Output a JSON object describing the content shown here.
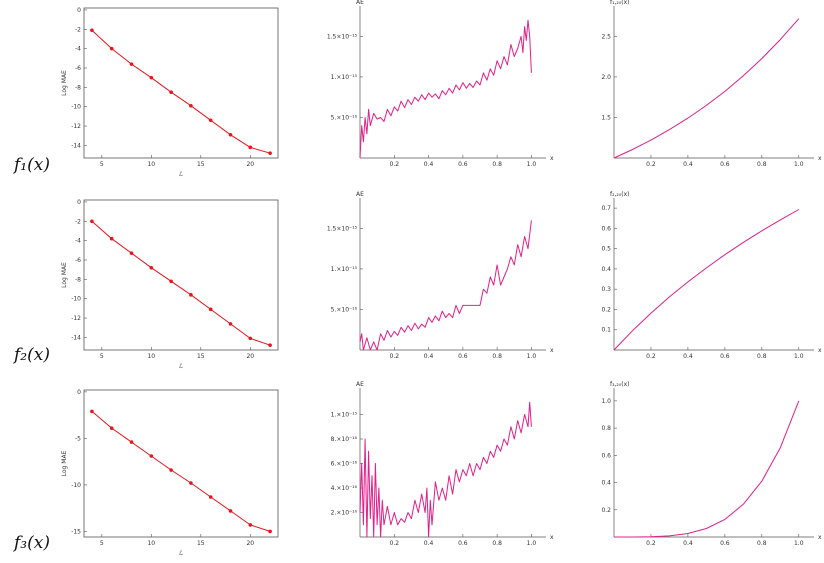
{
  "chart_data": [
    {
      "type": "line",
      "row": 0,
      "col": 0,
      "xlabel": "ℒ",
      "ylabel": "Log MAE",
      "xlim": [
        3.2,
        22.8
      ],
      "ylim": [
        -15.3,
        0.2
      ],
      "xticks": [
        "5",
        "10",
        "15",
        "20"
      ],
      "xtick_values": [
        5,
        10,
        15,
        20
      ],
      "yticks": [
        "0",
        "-2",
        "-4",
        "-6",
        "-8",
        "-10",
        "-12",
        "-14"
      ],
      "ytick_values": [
        0,
        -2,
        -4,
        -6,
        -8,
        -10,
        -12,
        -14
      ],
      "frame": true,
      "markers": true,
      "color": "#e8141c",
      "series": [
        {
          "x": [
            4,
            6,
            8,
            10,
            12,
            14,
            16,
            18,
            20,
            22
          ],
          "y": [
            -2.1,
            -4.0,
            -5.6,
            -7.0,
            -8.5,
            -9.9,
            -11.4,
            -12.9,
            -14.2,
            -14.8
          ]
        }
      ]
    },
    {
      "type": "line",
      "row": 0,
      "col": 1,
      "xlabel": "x",
      "ylabel": "AE",
      "xlim": [
        0,
        1.05
      ],
      "ylim": [
        0,
        1.85e-15
      ],
      "xticks": [
        "0.2",
        "0.4",
        "0.6",
        "0.8",
        "1.0"
      ],
      "xtick_values": [
        0.2,
        0.4,
        0.6,
        0.8,
        1.0
      ],
      "yticks": [
        "5.×10⁻¹⁶",
        "1.×10⁻¹⁵",
        "1.5×10⁻¹⁵"
      ],
      "ytick_values": [
        5e-16,
        1e-15,
        1.5e-15
      ],
      "frame": false,
      "markers": false,
      "color": "#e0208a",
      "series": [
        {
          "x": [
            0,
            0.01,
            0.02,
            0.03,
            0.04,
            0.05,
            0.06,
            0.08,
            0.1,
            0.12,
            0.14,
            0.16,
            0.18,
            0.2,
            0.22,
            0.24,
            0.26,
            0.28,
            0.3,
            0.32,
            0.34,
            0.36,
            0.38,
            0.4,
            0.42,
            0.44,
            0.46,
            0.48,
            0.5,
            0.52,
            0.54,
            0.56,
            0.58,
            0.6,
            0.62,
            0.64,
            0.66,
            0.68,
            0.7,
            0.72,
            0.74,
            0.76,
            0.78,
            0.8,
            0.82,
            0.84,
            0.86,
            0.88,
            0.9,
            0.92,
            0.94,
            0.95,
            0.96,
            0.97,
            0.98,
            0.99,
            1.0
          ],
          "y": [
            0,
            4e-16,
            2e-16,
            5e-16,
            3e-16,
            6e-16,
            4e-16,
            5.5e-16,
            4.8e-16,
            5e-16,
            4.5e-16,
            6e-16,
            5.2e-16,
            6.3e-16,
            5.8e-16,
            7e-16,
            6.2e-16,
            7.2e-16,
            6.6e-16,
            7.5e-16,
            7e-16,
            7.8e-16,
            7.2e-16,
            8e-16,
            7.5e-16,
            7.9e-16,
            7.3e-16,
            8.3e-16,
            7.8e-16,
            8.6e-16,
            8e-16,
            9e-16,
            8.4e-16,
            9.3e-16,
            8.6e-16,
            9.2e-16,
            8.7e-16,
            9.5e-16,
            9e-16,
            1.05e-15,
            9.6e-16,
            1.1e-15,
            1.02e-15,
            1.2e-15,
            1.1e-15,
            1.25e-15,
            1.15e-15,
            1.4e-15,
            1.25e-15,
            1.35e-15,
            1.5e-15,
            1.3e-15,
            1.62e-15,
            1.45e-15,
            1.7e-15,
            1.5e-15,
            1.05e-15
          ]
        }
      ]
    },
    {
      "type": "line",
      "row": 0,
      "col": 2,
      "xlabel": "x",
      "ylabel": "f₁,₂₀(x)",
      "xlim": [
        0,
        1.05
      ],
      "ylim": [
        1.0,
        2.85
      ],
      "xticks": [
        "0.2",
        "0.4",
        "0.6",
        "0.8",
        "1.0"
      ],
      "xtick_values": [
        0.2,
        0.4,
        0.6,
        0.8,
        1.0
      ],
      "yticks": [
        "1.5",
        "2.0",
        "2.5"
      ],
      "ytick_values": [
        1.5,
        2.0,
        2.5
      ],
      "frame": false,
      "markers": false,
      "color": "#e0208a",
      "series": [
        {
          "x": [
            0,
            0.1,
            0.2,
            0.3,
            0.4,
            0.5,
            0.6,
            0.7,
            0.8,
            0.9,
            1.0
          ],
          "y": [
            1.0,
            1.105,
            1.221,
            1.35,
            1.492,
            1.649,
            1.822,
            2.014,
            2.226,
            2.46,
            2.718
          ]
        }
      ]
    },
    {
      "type": "line",
      "row": 1,
      "col": 0,
      "xlabel": "ℒ",
      "ylabel": "Log MAE",
      "xlim": [
        3.2,
        22.8
      ],
      "ylim": [
        -15.3,
        0.2
      ],
      "xticks": [
        "5",
        "10",
        "15",
        "20"
      ],
      "xtick_values": [
        5,
        10,
        15,
        20
      ],
      "yticks": [
        "0",
        "-2",
        "-4",
        "-6",
        "-8",
        "-10",
        "-12",
        "-14"
      ],
      "ytick_values": [
        0,
        -2,
        -4,
        -6,
        -8,
        -10,
        -12,
        -14
      ],
      "frame": true,
      "markers": true,
      "color": "#e8141c",
      "series": [
        {
          "x": [
            4,
            6,
            8,
            10,
            12,
            14,
            16,
            18,
            20,
            22
          ],
          "y": [
            -2.0,
            -3.8,
            -5.3,
            -6.8,
            -8.2,
            -9.6,
            -11.1,
            -12.6,
            -14.1,
            -14.8
          ]
        }
      ]
    },
    {
      "type": "line",
      "row": 1,
      "col": 1,
      "xlabel": "x",
      "ylabel": "AE",
      "xlim": [
        0,
        1.05
      ],
      "ylim": [
        0,
        1.85e-15
      ],
      "xticks": [
        "0.2",
        "0.4",
        "0.6",
        "0.8",
        "1.0"
      ],
      "xtick_values": [
        0.2,
        0.4,
        0.6,
        0.8,
        1.0
      ],
      "yticks": [
        "5.×10⁻¹⁶",
        "1.×10⁻¹⁵",
        "1.5×10⁻¹⁵"
      ],
      "ytick_values": [
        5e-16,
        1e-15,
        1.5e-15
      ],
      "frame": false,
      "markers": false,
      "color": "#e0208a",
      "series": [
        {
          "x": [
            0,
            0.01,
            0.02,
            0.04,
            0.06,
            0.08,
            0.1,
            0.12,
            0.14,
            0.16,
            0.18,
            0.2,
            0.22,
            0.24,
            0.26,
            0.28,
            0.3,
            0.32,
            0.34,
            0.36,
            0.38,
            0.4,
            0.42,
            0.44,
            0.46,
            0.48,
            0.5,
            0.52,
            0.54,
            0.56,
            0.58,
            0.6,
            0.62,
            0.64,
            0.66,
            0.68,
            0.7,
            0.72,
            0.74,
            0.76,
            0.78,
            0.8,
            0.82,
            0.84,
            0.86,
            0.88,
            0.9,
            0.92,
            0.94,
            0.96,
            0.98,
            1.0
          ],
          "y": [
            1e-16,
            2e-16,
            0,
            1.5e-16,
            0,
            1e-16,
            0,
            2e-16,
            1.2e-16,
            2.4e-16,
            1.6e-16,
            2.3e-16,
            1.8e-16,
            2.8e-16,
            2.2e-16,
            3e-16,
            2.4e-16,
            3.3e-16,
            2.6e-16,
            3.2e-16,
            2.8e-16,
            4e-16,
            3.4e-16,
            4.2e-16,
            3.6e-16,
            4.8e-16,
            4e-16,
            4.5e-16,
            4e-16,
            5.5e-16,
            4.5e-16,
            5.5e-16,
            5.5e-16,
            5.5e-16,
            5.5e-16,
            5.5e-16,
            5.5e-16,
            7.5e-16,
            7e-16,
            9e-16,
            8e-16,
            1.05e-15,
            8e-16,
            9e-16,
            1e-15,
            1.15e-15,
            1.05e-15,
            1.3e-15,
            1.15e-15,
            1.4e-15,
            1.25e-15,
            1.6e-15
          ]
        }
      ]
    },
    {
      "type": "line",
      "row": 1,
      "col": 2,
      "xlabel": "x",
      "ylabel": "f₂,₂₀(x)",
      "xlim": [
        0,
        1.05
      ],
      "ylim": [
        0,
        0.74
      ],
      "xticks": [
        "0.2",
        "0.4",
        "0.6",
        "0.8",
        "1.0"
      ],
      "xtick_values": [
        0.2,
        0.4,
        0.6,
        0.8,
        1.0
      ],
      "yticks": [
        "0.1",
        "0.2",
        "0.3",
        "0.4",
        "0.5",
        "0.6",
        "0.7"
      ],
      "ytick_values": [
        0.1,
        0.2,
        0.3,
        0.4,
        0.5,
        0.6,
        0.7
      ],
      "frame": false,
      "markers": false,
      "color": "#e0208a",
      "series": [
        {
          "x": [
            0,
            0.1,
            0.2,
            0.3,
            0.4,
            0.5,
            0.6,
            0.7,
            0.8,
            0.9,
            1.0
          ],
          "y": [
            0,
            0.095,
            0.182,
            0.262,
            0.336,
            0.405,
            0.47,
            0.531,
            0.588,
            0.642,
            0.693
          ]
        }
      ]
    },
    {
      "type": "line",
      "row": 2,
      "col": 0,
      "xlabel": "ℒ",
      "ylabel": "Log MAE",
      "xlim": [
        3.2,
        22.8
      ],
      "ylim": [
        -15.6,
        0.2
      ],
      "xticks": [
        "5",
        "10",
        "15",
        "20"
      ],
      "xtick_values": [
        5,
        10,
        15,
        20
      ],
      "yticks": [
        "0",
        "-5",
        "-10",
        "-15"
      ],
      "ytick_values": [
        0,
        -5,
        -10,
        -15
      ],
      "frame": true,
      "markers": true,
      "color": "#e8141c",
      "series": [
        {
          "x": [
            4,
            6,
            8,
            10,
            12,
            14,
            16,
            18,
            20,
            22
          ],
          "y": [
            -2.1,
            -3.9,
            -5.4,
            -6.9,
            -8.4,
            -9.8,
            -11.3,
            -12.8,
            -14.3,
            -15.0
          ]
        }
      ]
    },
    {
      "type": "line",
      "row": 2,
      "col": 1,
      "xlabel": "x",
      "ylabel": "AE",
      "xlim": [
        0,
        1.05
      ],
      "ylim": [
        0,
        1.2e-15
      ],
      "xticks": [
        "0.2",
        "0.4",
        "0.6",
        "0.8",
        "1.0"
      ],
      "xtick_values": [
        0.2,
        0.4,
        0.6,
        0.8,
        1.0
      ],
      "yticks": [
        "2.×10⁻¹⁶",
        "4.×10⁻¹⁶",
        "6.×10⁻¹⁶",
        "8.×10⁻¹⁶",
        "1.×10⁻¹⁵"
      ],
      "ytick_values": [
        2e-16,
        4e-16,
        6e-16,
        8e-16,
        1e-15
      ],
      "frame": false,
      "markers": false,
      "color": "#e0208a",
      "series": [
        {
          "x": [
            0,
            0.01,
            0.02,
            0.03,
            0.04,
            0.05,
            0.06,
            0.07,
            0.08,
            0.09,
            0.1,
            0.11,
            0.12,
            0.13,
            0.14,
            0.16,
            0.18,
            0.2,
            0.22,
            0.24,
            0.26,
            0.28,
            0.3,
            0.32,
            0.34,
            0.36,
            0.38,
            0.39,
            0.4,
            0.41,
            0.42,
            0.44,
            0.46,
            0.48,
            0.5,
            0.52,
            0.54,
            0.56,
            0.58,
            0.6,
            0.62,
            0.64,
            0.66,
            0.68,
            0.7,
            0.72,
            0.74,
            0.76,
            0.78,
            0.8,
            0.82,
            0.84,
            0.86,
            0.88,
            0.9,
            0.92,
            0.94,
            0.96,
            0.98,
            0.99,
            1.0
          ],
          "y": [
            2e-16,
            6e-16,
            1e-16,
            8e-16,
            0,
            7e-16,
            1.5e-16,
            5e-16,
            0,
            6e-16,
            1e-16,
            4e-16,
            0,
            3e-16,
            1e-16,
            2.5e-16,
            1e-16,
            2e-16,
            1e-16,
            1.5e-16,
            1.2e-16,
            2e-16,
            1.5e-16,
            3e-16,
            2e-16,
            3.5e-16,
            2e-16,
            4e-16,
            0,
            3e-16,
            1e-16,
            4.5e-16,
            3e-16,
            4e-16,
            3e-16,
            5e-16,
            3.5e-16,
            5.5e-16,
            4.5e-16,
            5.5e-16,
            5e-16,
            6e-16,
            5e-16,
            6e-16,
            5.5e-16,
            6.5e-16,
            6e-16,
            7e-16,
            6.5e-16,
            7.5e-16,
            7e-16,
            8e-16,
            7.5e-16,
            9e-16,
            8e-16,
            9.5e-16,
            8.5e-16,
            1e-15,
            9e-16,
            1.1e-15,
            9e-16
          ]
        }
      ]
    },
    {
      "type": "line",
      "row": 2,
      "col": 2,
      "xlabel": "x",
      "ylabel": "f₃,₂₀(x)",
      "xlim": [
        0,
        1.05
      ],
      "ylim": [
        0,
        1.08
      ],
      "xticks": [
        "0.2",
        "0.4",
        "0.6",
        "0.8",
        "1.0"
      ],
      "xtick_values": [
        0.2,
        0.4,
        0.6,
        0.8,
        1.0
      ],
      "yticks": [
        "0.2",
        "0.4",
        "0.6",
        "0.8",
        "1.0"
      ],
      "ytick_values": [
        0.2,
        0.4,
        0.6,
        0.8,
        1.0
      ],
      "frame": false,
      "markers": false,
      "color": "#e0208a",
      "series": [
        {
          "x": [
            0,
            0.1,
            0.2,
            0.3,
            0.4,
            0.5,
            0.6,
            0.7,
            0.8,
            0.9,
            1.0
          ],
          "y": [
            0,
            0.0001,
            0.0016,
            0.0081,
            0.0256,
            0.0625,
            0.1296,
            0.2401,
            0.4096,
            0.6561,
            1.0
          ]
        }
      ]
    }
  ],
  "row_labels": [
    "f₁(x)",
    "f₂(x)",
    "f₃(x)"
  ],
  "colors": {
    "log_mae_line": "#e8141c",
    "curve": "#e0208a",
    "axis": "#555555"
  }
}
